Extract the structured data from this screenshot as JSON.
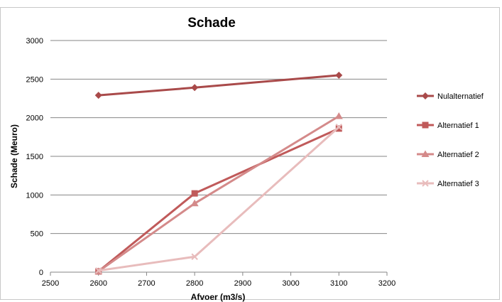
{
  "chart_data": {
    "type": "line",
    "title": "Schade",
    "xlabel": "Afvoer (m3/s)",
    "ylabel": "Schade (Meuro)",
    "xlim": [
      2500,
      3200
    ],
    "ylim": [
      0,
      3000
    ],
    "xticks": [
      2500,
      2600,
      2700,
      2800,
      2900,
      3000,
      3100,
      3200
    ],
    "yticks": [
      0,
      500,
      1000,
      1500,
      2000,
      2500,
      3000
    ],
    "grid": true,
    "legend_position": "right",
    "x": [
      2600,
      2800,
      3100
    ],
    "series": [
      {
        "name": "Nulalternatief",
        "values": [
          2290,
          2390,
          2550
        ],
        "color": "#a94a4a",
        "marker": "diamond"
      },
      {
        "name": "Alternatief 1",
        "values": [
          10,
          1020,
          1860
        ],
        "color": "#c05a5a",
        "marker": "square"
      },
      {
        "name": "Alternatief 2",
        "values": [
          10,
          890,
          2020
        ],
        "color": "#d48a8a",
        "marker": "triangle"
      },
      {
        "name": "Alternatief 3",
        "values": [
          20,
          200,
          1880
        ],
        "color": "#e8bcbc",
        "marker": "x"
      }
    ]
  }
}
